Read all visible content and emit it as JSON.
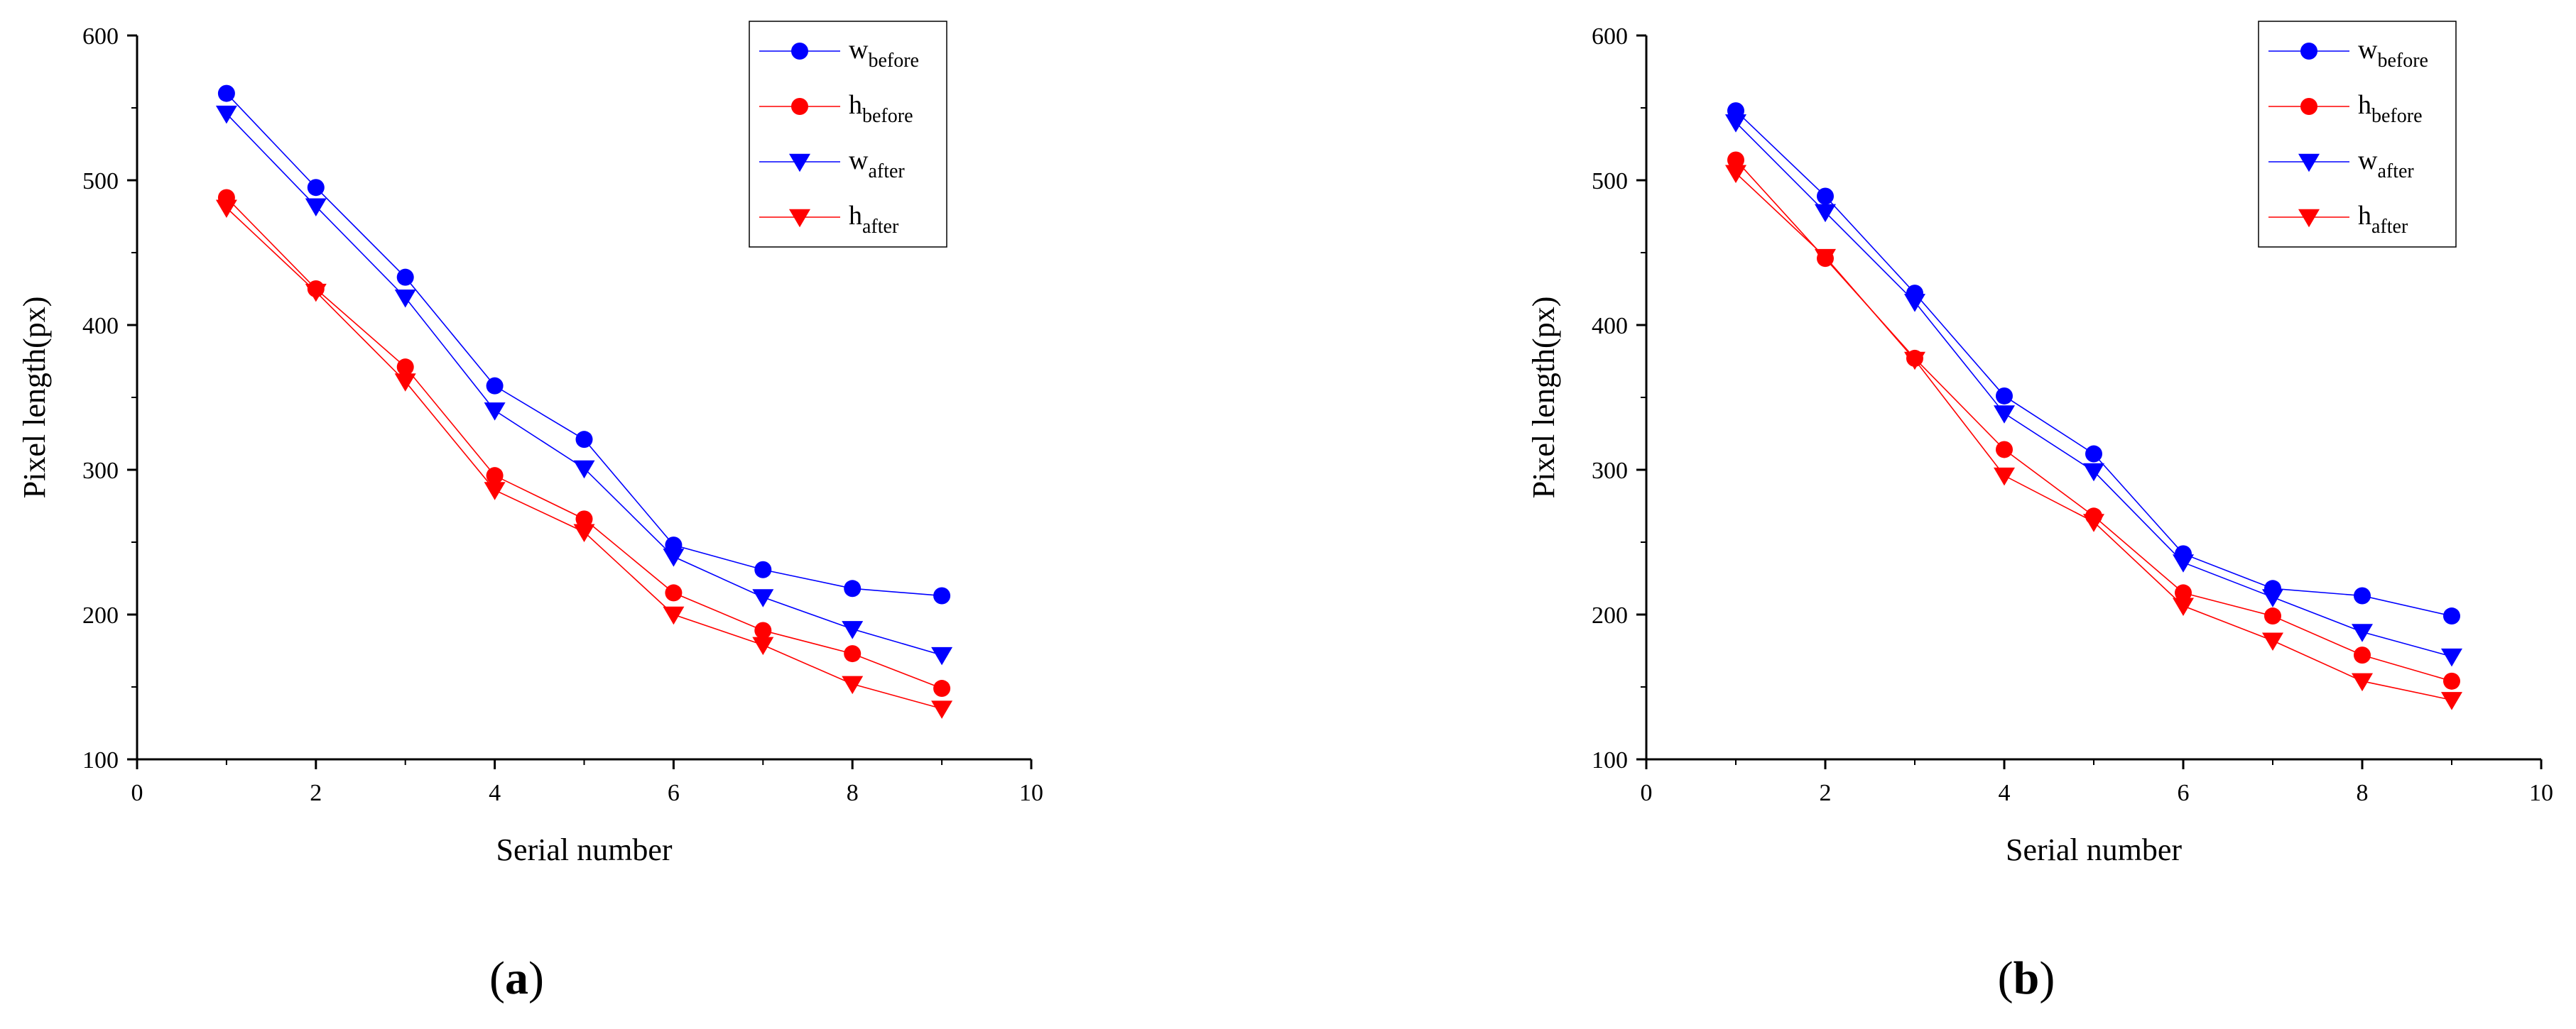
{
  "chart_data": [
    {
      "type": "line",
      "panel": "a",
      "caption": "a",
      "xlabel": "Serial number",
      "ylabel": "Pixel length(px)",
      "xlim": [
        0,
        10
      ],
      "ylim": [
        100,
        600
      ],
      "xticks": [
        0,
        2,
        4,
        6,
        8,
        10
      ],
      "yticks": [
        100,
        200,
        300,
        400,
        500,
        600
      ],
      "legend_position": "top-right",
      "x": [
        1,
        2,
        3,
        4,
        5,
        6,
        7,
        8,
        9
      ],
      "series": [
        {
          "name": "w_before",
          "base": "w",
          "sub": "before",
          "color": "#0000ff",
          "marker": "circle",
          "values": [
            560,
            495,
            433,
            358,
            321,
            248,
            231,
            218,
            213
          ]
        },
        {
          "name": "h_before",
          "base": "h",
          "sub": "before",
          "color": "#ff0000",
          "marker": "circle",
          "values": [
            488,
            425,
            371,
            296,
            266,
            215,
            189,
            173,
            149
          ]
        },
        {
          "name": "w_after",
          "base": "w",
          "sub": "after",
          "color": "#0000ff",
          "marker": "triangle-down",
          "values": [
            546,
            482,
            419,
            341,
            301,
            240,
            212,
            190,
            172
          ]
        },
        {
          "name": "h_after",
          "base": "h",
          "sub": "after",
          "color": "#ff0000",
          "marker": "triangle-down",
          "values": [
            481,
            423,
            361,
            286,
            257,
            200,
            179,
            152,
            135
          ]
        }
      ]
    },
    {
      "type": "line",
      "panel": "b",
      "caption": "b",
      "xlabel": "Serial number",
      "ylabel": "Pixel length(px)",
      "xlim": [
        0,
        10
      ],
      "ylim": [
        100,
        600
      ],
      "xticks": [
        0,
        2,
        4,
        6,
        8,
        10
      ],
      "yticks": [
        100,
        200,
        300,
        400,
        500,
        600
      ],
      "legend_position": "top-right",
      "x": [
        1,
        2,
        3,
        4,
        5,
        6,
        7,
        8,
        9
      ],
      "series": [
        {
          "name": "w_before",
          "base": "w",
          "sub": "before",
          "color": "#0000ff",
          "marker": "circle",
          "values": [
            548,
            489,
            422,
            351,
            311,
            242,
            218,
            213,
            199
          ]
        },
        {
          "name": "h_before",
          "base": "h",
          "sub": "before",
          "color": "#ff0000",
          "marker": "circle",
          "values": [
            514,
            446,
            377,
            314,
            268,
            215,
            199,
            172,
            154
          ]
        },
        {
          "name": "w_after",
          "base": "w",
          "sub": "after",
          "color": "#0000ff",
          "marker": "triangle-down",
          "values": [
            540,
            478,
            416,
            339,
            299,
            236,
            212,
            188,
            171
          ]
        },
        {
          "name": "h_after",
          "base": "h",
          "sub": "after",
          "color": "#ff0000",
          "marker": "triangle-down",
          "values": [
            505,
            447,
            376,
            296,
            264,
            206,
            182,
            154,
            141
          ]
        }
      ]
    }
  ]
}
